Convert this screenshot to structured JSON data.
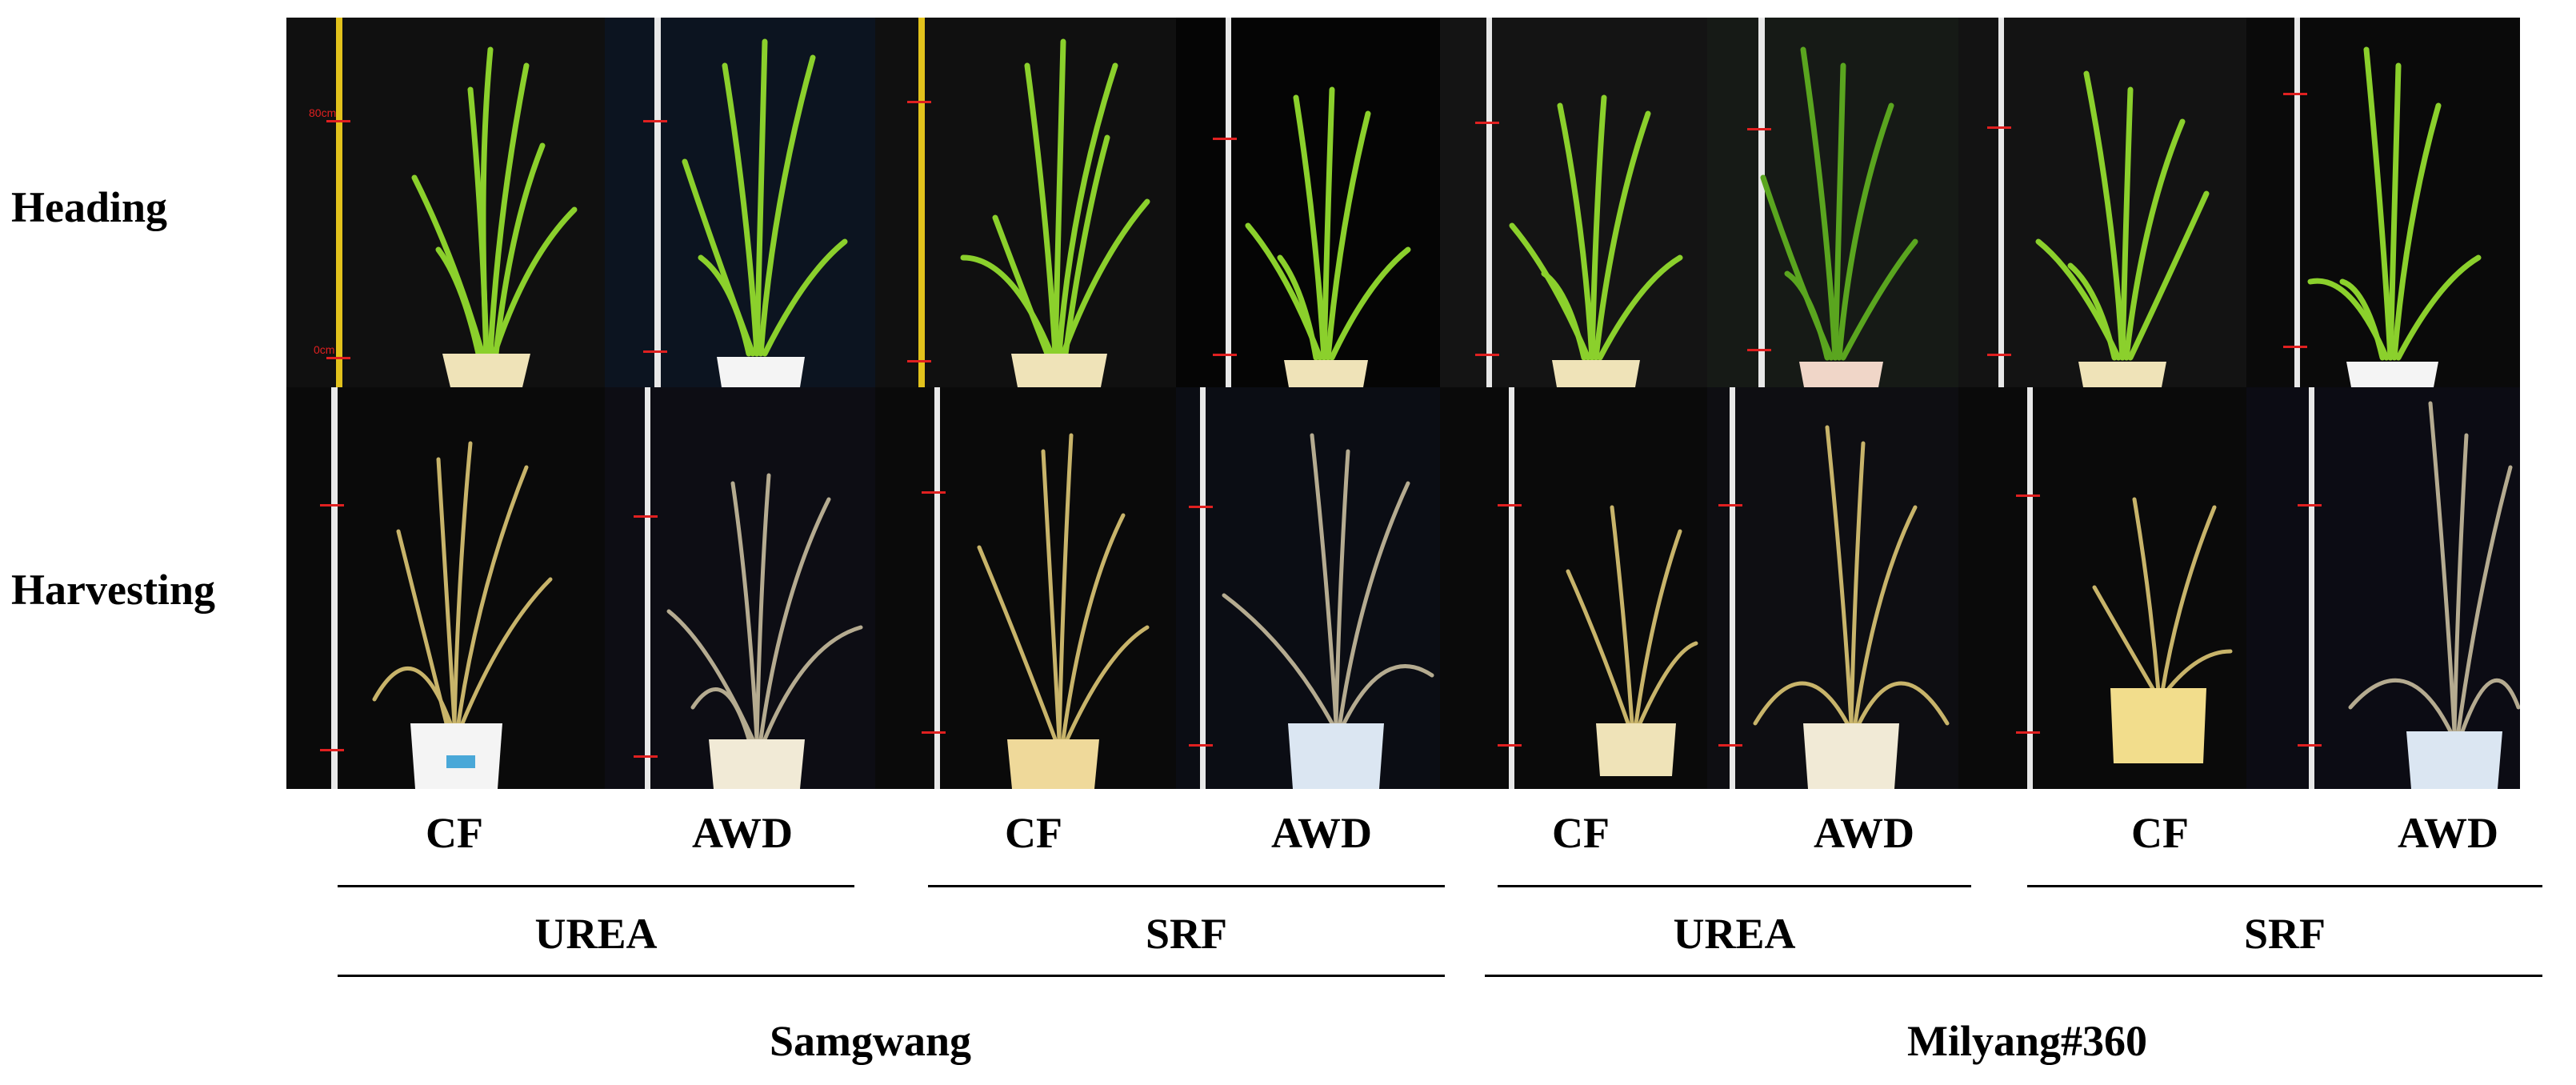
{
  "rows": {
    "heading": "Heading",
    "harvesting": "Harvesting"
  },
  "scale_marks": {
    "top": "80cm",
    "bottom": "0cm"
  },
  "water": [
    "CF",
    "AWD",
    "CF",
    "AWD",
    "CF",
    "AWD",
    "CF",
    "AWD"
  ],
  "fertilizer": [
    "UREA",
    "SRF",
    "UREA",
    "SRF"
  ],
  "cultivar": [
    "Samgwang",
    "Milyang#360"
  ],
  "colors": {
    "heading_leaf": "#8bd02c",
    "heading_leaf_dark": "#5aa51f",
    "harvest_straw": "#c8b46a",
    "harvest_grey": "#b5ab90",
    "scale_yellow": "#e2c21c",
    "scale_white": "#e8e8e8",
    "mark_red": "#e02020",
    "pot_cream": "#efe3b8",
    "pot_white": "#f4f4f4"
  }
}
